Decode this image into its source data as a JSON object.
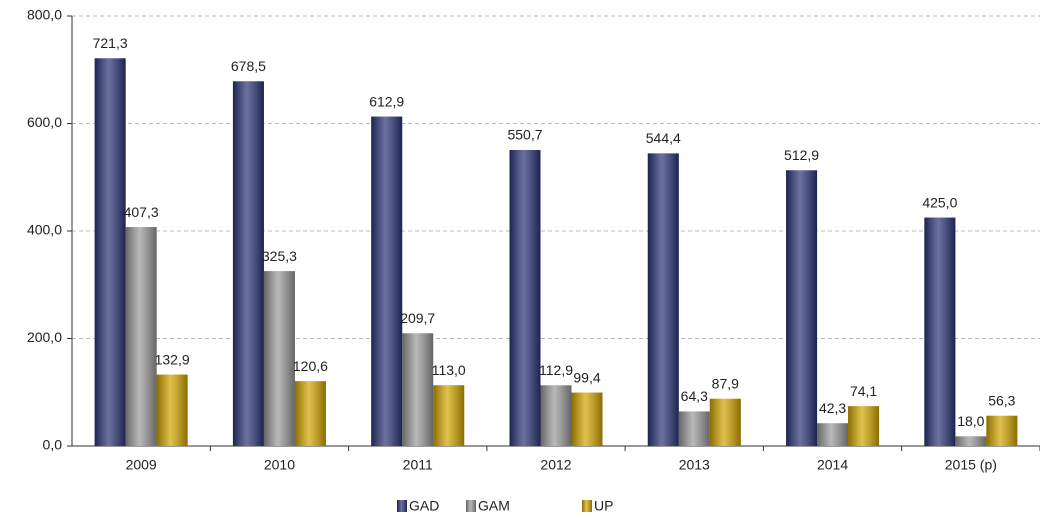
{
  "chart_data": {
    "type": "bar",
    "categories": [
      "2009",
      "2010",
      "2011",
      "2012",
      "2013",
      "2014",
      "2015 (p)"
    ],
    "series": [
      {
        "name": "GAD",
        "color": "#2b3578",
        "values": [
          721.3,
          678.5,
          612.9,
          550.7,
          544.4,
          512.9,
          425.0
        ],
        "value_labels": [
          "721,3",
          "678,5",
          "612,9",
          "550,7",
          "544,4",
          "512,9",
          "425,0"
        ]
      },
      {
        "name": "GAM",
        "color": "#9a9a9a",
        "values": [
          407.3,
          325.3,
          209.7,
          112.9,
          64.3,
          42.3,
          18.0
        ],
        "value_labels": [
          "407,3",
          "325,3",
          "209,7",
          "112,9",
          "64,3",
          "42,3",
          "18,0"
        ]
      },
      {
        "name": "UP",
        "color": "#d4a600",
        "values": [
          132.9,
          120.6,
          113.0,
          99.4,
          87.9,
          74.1,
          56.3
        ],
        "value_labels": [
          "132,9",
          "120,6",
          "113,0",
          "99,4",
          "87,9",
          "74,1",
          "56,3"
        ]
      }
    ],
    "ylim": [
      0,
      800
    ],
    "yticks": [
      {
        "value": 0,
        "label": "0,0"
      },
      {
        "value": 200,
        "label": "200,0"
      },
      {
        "value": 400,
        "label": "400,0"
      },
      {
        "value": 600,
        "label": "600,0"
      },
      {
        "value": 800,
        "label": "800,0"
      }
    ],
    "grid": true,
    "legend": "bottom"
  }
}
